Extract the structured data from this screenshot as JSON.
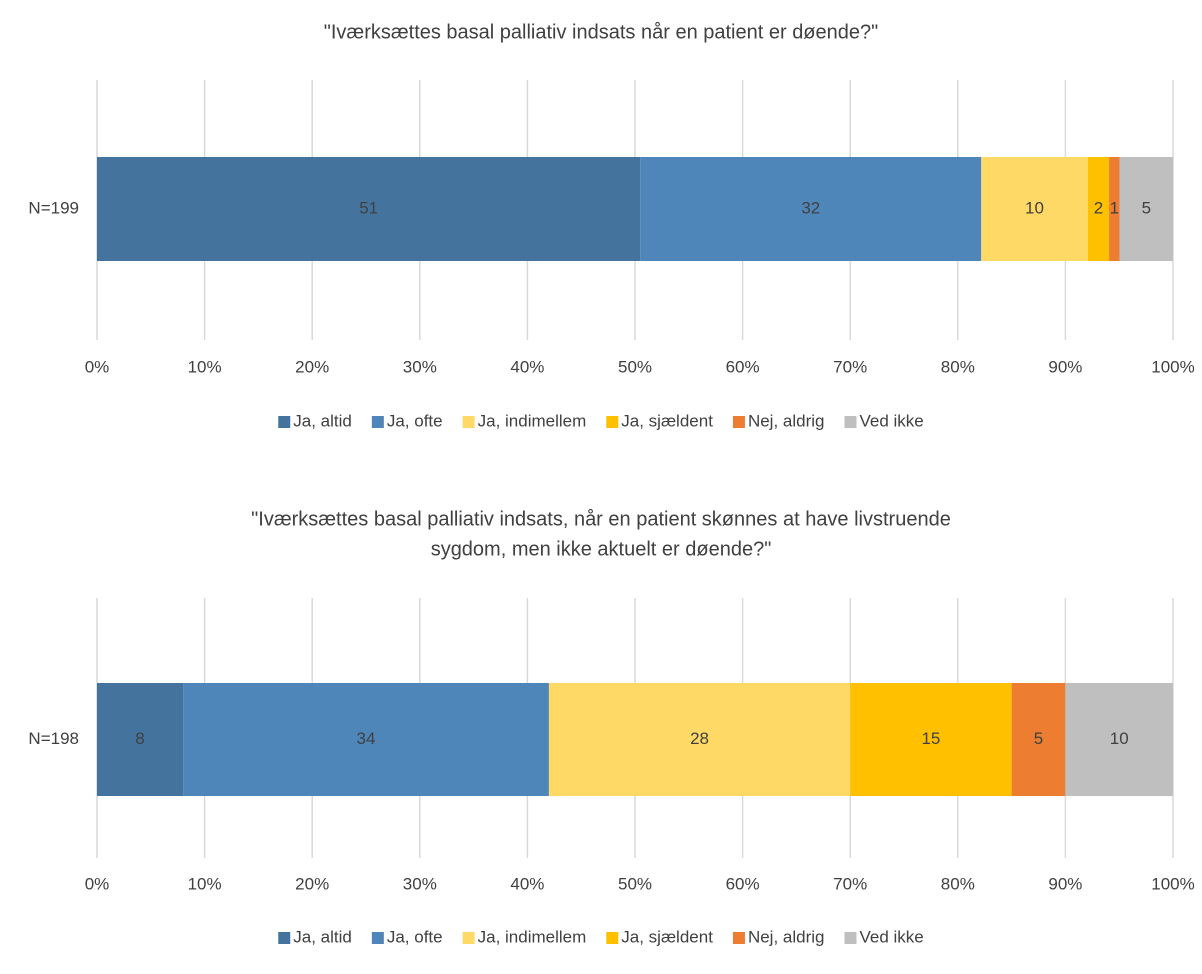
{
  "chart_data": [
    {
      "type": "bar",
      "orientation": "horizontal",
      "stacking": "percent",
      "title": [
        "\"Iværksættes basal palliativ indsats når en patient er døende?\""
      ],
      "categories": [
        "N=199"
      ],
      "series": [
        {
          "name": "Ja, altid",
          "color": "#44739d",
          "values": [
            51
          ]
        },
        {
          "name": "Ja, ofte",
          "color": "#4e86ba",
          "values": [
            32
          ]
        },
        {
          "name": "Ja, indimellem",
          "color": "#ffd966",
          "values": [
            10
          ]
        },
        {
          "name": "Ja, sjældent",
          "color": "#ffc000",
          "values": [
            2
          ]
        },
        {
          "name": "Nej, aldrig",
          "color": "#ed7d31",
          "values": [
            1
          ]
        },
        {
          "name": "Ved ikke",
          "color": "#bfbfbf",
          "values": [
            5
          ]
        }
      ],
      "xlim": [
        0,
        100
      ],
      "xticks": [
        {
          "value": 0,
          "label": "0%"
        },
        {
          "value": 10,
          "label": "10%"
        },
        {
          "value": 20,
          "label": "20%"
        },
        {
          "value": 30,
          "label": "30%"
        },
        {
          "value": 40,
          "label": "40%"
        },
        {
          "value": 50,
          "label": "50%"
        },
        {
          "value": 60,
          "label": "60%"
        },
        {
          "value": 70,
          "label": "70%"
        },
        {
          "value": 80,
          "label": "80%"
        },
        {
          "value": 90,
          "label": "90%"
        },
        {
          "value": 100,
          "label": "100%"
        }
      ],
      "grid": true,
      "legend": "bottom"
    },
    {
      "type": "bar",
      "orientation": "horizontal",
      "stacking": "percent",
      "title": [
        "\"Iværksættes basal palliativ indsats, når en patient skønnes at have livstruende",
        "sygdom, men ikke aktuelt er døende?\""
      ],
      "categories": [
        "N=198"
      ],
      "series": [
        {
          "name": "Ja, altid",
          "color": "#44739d",
          "values": [
            8
          ]
        },
        {
          "name": "Ja, ofte",
          "color": "#4e86ba",
          "values": [
            34
          ]
        },
        {
          "name": "Ja, indimellem",
          "color": "#ffd966",
          "values": [
            28
          ]
        },
        {
          "name": "Ja, sjældent",
          "color": "#ffc000",
          "values": [
            15
          ]
        },
        {
          "name": "Nej, aldrig",
          "color": "#ed7d31",
          "values": [
            5
          ]
        },
        {
          "name": "Ved ikke",
          "color": "#bfbfbf",
          "values": [
            10
          ]
        }
      ],
      "xlim": [
        0,
        100
      ],
      "xticks": [
        {
          "value": 0,
          "label": "0%"
        },
        {
          "value": 10,
          "label": "10%"
        },
        {
          "value": 20,
          "label": "20%"
        },
        {
          "value": 30,
          "label": "30%"
        },
        {
          "value": 40,
          "label": "40%"
        },
        {
          "value": 50,
          "label": "50%"
        },
        {
          "value": 60,
          "label": "60%"
        },
        {
          "value": 70,
          "label": "70%"
        },
        {
          "value": 80,
          "label": "80%"
        },
        {
          "value": 90,
          "label": "90%"
        },
        {
          "value": 100,
          "label": "100%"
        }
      ],
      "grid": true,
      "legend": "bottom"
    }
  ]
}
